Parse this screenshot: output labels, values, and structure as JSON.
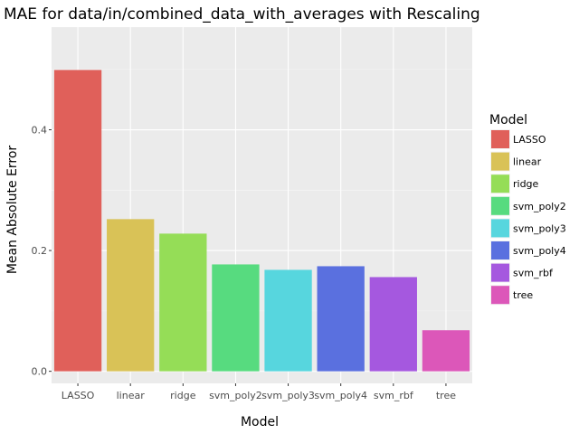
{
  "chart_data": {
    "type": "bar",
    "title": "MAE for data/in/combined_data_with_averages with Rescaling",
    "xlabel": "Model",
    "ylabel": "Mean Absolute Error",
    "categories": [
      "LASSO",
      "linear",
      "ridge",
      "svm_poly2",
      "svm_poly3",
      "svm_poly4",
      "svm_rbf",
      "tree"
    ],
    "values": [
      0.499,
      0.252,
      0.228,
      0.177,
      0.168,
      0.174,
      0.156,
      0.068
    ],
    "colors": [
      "#E0605A",
      "#D9C257",
      "#95DD57",
      "#57DB7F",
      "#57D6DE",
      "#5A70DF",
      "#A558DF",
      "#DC57B9"
    ],
    "ylim": [
      -0.02,
      0.57
    ],
    "yticks": [
      0.0,
      0.2,
      0.4
    ],
    "ytick_labels": [
      "0.0",
      "0.2",
      "0.4"
    ],
    "grid": true,
    "legend": {
      "title": "Model",
      "placement": "right",
      "entries": [
        "LASSO",
        "linear",
        "ridge",
        "svm_poly2",
        "svm_poly3",
        "svm_poly4",
        "svm_rbf",
        "tree"
      ]
    }
  }
}
